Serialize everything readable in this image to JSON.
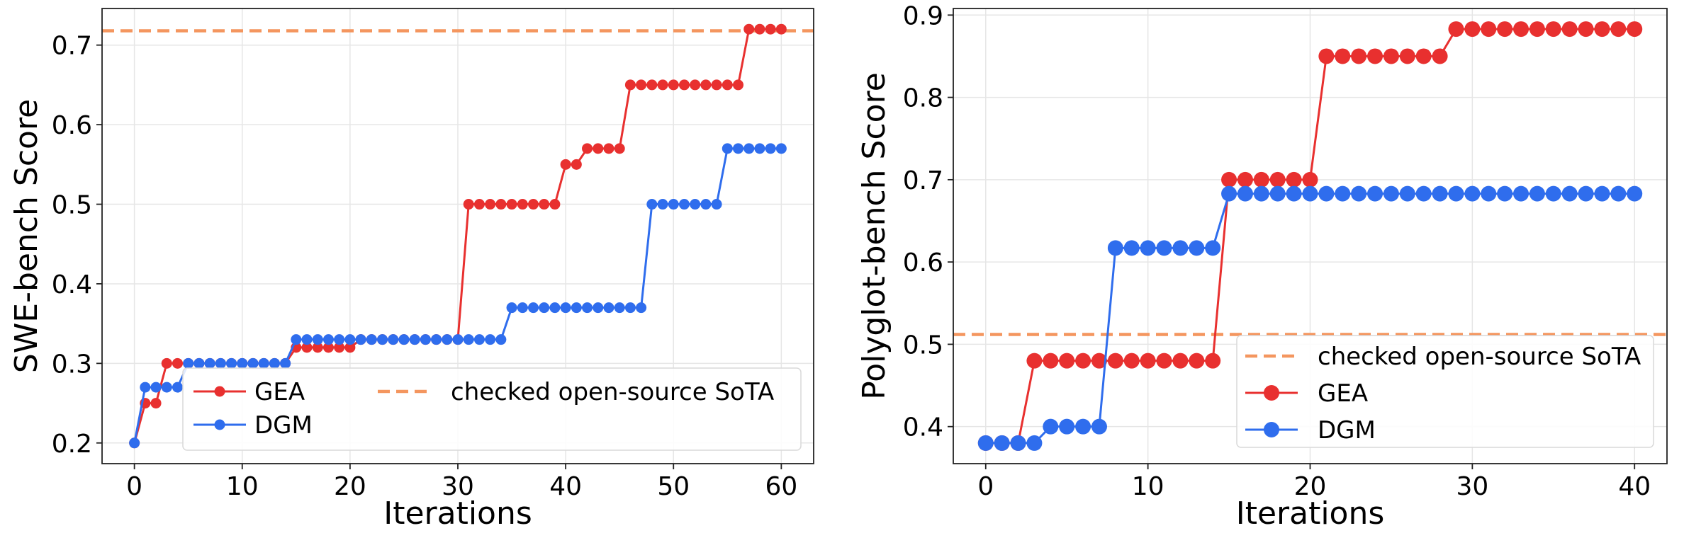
{
  "chart_data": [
    {
      "type": "line",
      "title": "",
      "xlabel": "Iterations",
      "ylabel": "SWE-bench Score",
      "xlim": [
        -3,
        63
      ],
      "ylim": [
        0.174,
        0.746
      ],
      "xticks": [
        0,
        10,
        20,
        30,
        40,
        50,
        60
      ],
      "xtick_labels": [
        "0",
        "10",
        "20",
        "30",
        "40",
        "50",
        "60"
      ],
      "yticks": [
        0.2,
        0.3,
        0.4,
        0.5,
        0.6,
        0.7
      ],
      "ytick_labels": [
        "0.2",
        "0.3",
        "0.4",
        "0.5",
        "0.6",
        "0.7"
      ],
      "grid": true,
      "legend_placement": "lower-right",
      "legend_columns": 2,
      "reference_line": {
        "name": "checked open-source SoTA",
        "value": 0.718,
        "color": "#f4965f",
        "style": "dashed"
      },
      "series": [
        {
          "name": "GEA",
          "color": "#e8302f",
          "x": [
            0,
            1,
            2,
            3,
            4,
            5,
            6,
            7,
            8,
            9,
            10,
            11,
            12,
            13,
            14,
            15,
            16,
            17,
            18,
            19,
            20,
            21,
            22,
            23,
            24,
            25,
            26,
            27,
            28,
            29,
            30,
            31,
            32,
            33,
            34,
            35,
            36,
            37,
            38,
            39,
            40,
            41,
            42,
            43,
            44,
            45,
            46,
            47,
            48,
            49,
            50,
            51,
            52,
            53,
            54,
            55,
            56,
            57,
            58,
            59,
            60
          ],
          "values": [
            0.2,
            0.25,
            0.25,
            0.3,
            0.3,
            0.3,
            0.3,
            0.3,
            0.3,
            0.3,
            0.3,
            0.3,
            0.3,
            0.3,
            0.3,
            0.32,
            0.32,
            0.32,
            0.32,
            0.32,
            0.32,
            0.33,
            0.33,
            0.33,
            0.33,
            0.33,
            0.33,
            0.33,
            0.33,
            0.33,
            0.33,
            0.5,
            0.5,
            0.5,
            0.5,
            0.5,
            0.5,
            0.5,
            0.5,
            0.5,
            0.55,
            0.55,
            0.57,
            0.57,
            0.57,
            0.57,
            0.65,
            0.65,
            0.65,
            0.65,
            0.65,
            0.65,
            0.65,
            0.65,
            0.65,
            0.65,
            0.65,
            0.72,
            0.72,
            0.72,
            0.72
          ]
        },
        {
          "name": "DGM",
          "color": "#2f6ded",
          "x": [
            0,
            1,
            2,
            3,
            4,
            5,
            6,
            7,
            8,
            9,
            10,
            11,
            12,
            13,
            14,
            15,
            16,
            17,
            18,
            19,
            20,
            21,
            22,
            23,
            24,
            25,
            26,
            27,
            28,
            29,
            30,
            31,
            32,
            33,
            34,
            35,
            36,
            37,
            38,
            39,
            40,
            41,
            42,
            43,
            44,
            45,
            46,
            47,
            48,
            49,
            50,
            51,
            52,
            53,
            54,
            55,
            56,
            57,
            58,
            59,
            60
          ],
          "values": [
            0.2,
            0.27,
            0.27,
            0.27,
            0.27,
            0.3,
            0.3,
            0.3,
            0.3,
            0.3,
            0.3,
            0.3,
            0.3,
            0.3,
            0.3,
            0.33,
            0.33,
            0.33,
            0.33,
            0.33,
            0.33,
            0.33,
            0.33,
            0.33,
            0.33,
            0.33,
            0.33,
            0.33,
            0.33,
            0.33,
            0.33,
            0.33,
            0.33,
            0.33,
            0.33,
            0.37,
            0.37,
            0.37,
            0.37,
            0.37,
            0.37,
            0.37,
            0.37,
            0.37,
            0.37,
            0.37,
            0.37,
            0.37,
            0.5,
            0.5,
            0.5,
            0.5,
            0.5,
            0.5,
            0.5,
            0.57,
            0.57,
            0.57,
            0.57,
            0.57,
            0.57
          ]
        }
      ]
    },
    {
      "type": "line",
      "title": "",
      "xlabel": "Iterations",
      "ylabel": "Polyglot-bench Score",
      "xlim": [
        -2,
        42
      ],
      "ylim": [
        0.355,
        0.908
      ],
      "xticks": [
        0,
        10,
        20,
        30,
        40
      ],
      "xtick_labels": [
        "0",
        "10",
        "20",
        "30",
        "40"
      ],
      "yticks": [
        0.4,
        0.5,
        0.6,
        0.7,
        0.8,
        0.9
      ],
      "ytick_labels": [
        "0.4",
        "0.5",
        "0.6",
        "0.7",
        "0.8",
        "0.9"
      ],
      "grid": true,
      "legend_placement": "lower-right",
      "legend_columns": 1,
      "reference_line": {
        "name": "checked open-source SoTA",
        "value": 0.512,
        "color": "#f4965f",
        "style": "dashed"
      },
      "series": [
        {
          "name": "GEA",
          "color": "#e8302f",
          "x": [
            0,
            1,
            2,
            3,
            4,
            5,
            6,
            7,
            8,
            9,
            10,
            11,
            12,
            13,
            14,
            15,
            16,
            17,
            18,
            19,
            20,
            21,
            22,
            23,
            24,
            25,
            26,
            27,
            28,
            29,
            30,
            31,
            32,
            33,
            34,
            35,
            36,
            37,
            38,
            39,
            40
          ],
          "values": [
            0.38,
            0.38,
            0.38,
            0.48,
            0.48,
            0.48,
            0.48,
            0.48,
            0.48,
            0.48,
            0.48,
            0.48,
            0.48,
            0.48,
            0.48,
            0.7,
            0.7,
            0.7,
            0.7,
            0.7,
            0.7,
            0.85,
            0.85,
            0.85,
            0.85,
            0.85,
            0.85,
            0.85,
            0.85,
            0.883,
            0.883,
            0.883,
            0.883,
            0.883,
            0.883,
            0.883,
            0.883,
            0.883,
            0.883,
            0.883,
            0.883
          ]
        },
        {
          "name": "DGM",
          "color": "#2f6ded",
          "x": [
            0,
            1,
            2,
            3,
            4,
            5,
            6,
            7,
            8,
            9,
            10,
            11,
            12,
            13,
            14,
            15,
            16,
            17,
            18,
            19,
            20,
            21,
            22,
            23,
            24,
            25,
            26,
            27,
            28,
            29,
            30,
            31,
            32,
            33,
            34,
            35,
            36,
            37,
            38,
            39,
            40
          ],
          "values": [
            0.38,
            0.38,
            0.38,
            0.38,
            0.4,
            0.4,
            0.4,
            0.4,
            0.617,
            0.617,
            0.617,
            0.617,
            0.617,
            0.617,
            0.617,
            0.683,
            0.683,
            0.683,
            0.683,
            0.683,
            0.683,
            0.683,
            0.683,
            0.683,
            0.683,
            0.683,
            0.683,
            0.683,
            0.683,
            0.683,
            0.683,
            0.683,
            0.683,
            0.683,
            0.683,
            0.683,
            0.683,
            0.683,
            0.683,
            0.683,
            0.683
          ]
        }
      ]
    }
  ]
}
